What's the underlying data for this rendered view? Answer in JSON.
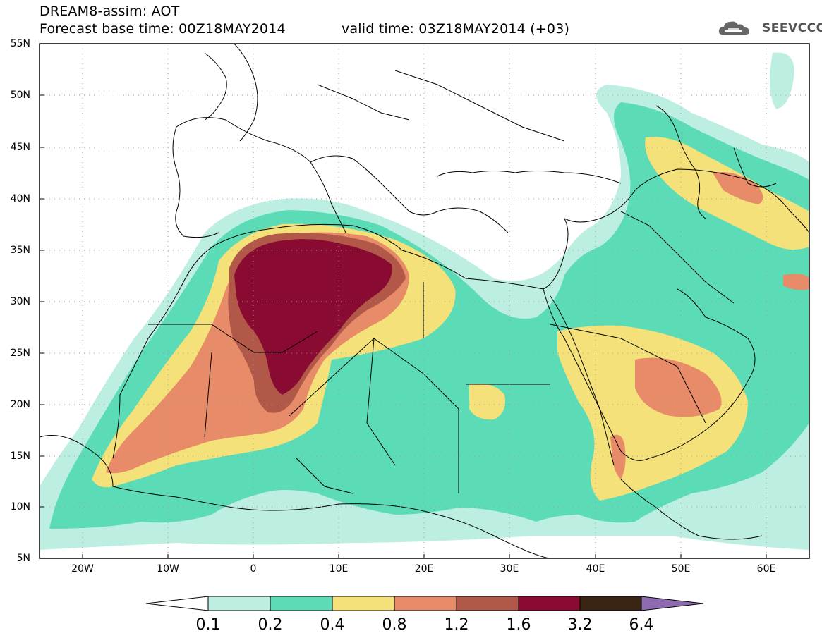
{
  "header": {
    "title_line1": "DREAM8-assim: AOT",
    "title_line2": "Forecast base time: 00Z18MAY2014",
    "valid_time": "valid time: 03Z18MAY2014 (+03)"
  },
  "logo": {
    "text": "SEEVCCC",
    "icon": "cloud-icon"
  },
  "map": {
    "lat_labels": [
      "55N",
      "50N",
      "45N",
      "40N",
      "35N",
      "30N",
      "25N",
      "20N",
      "15N",
      "10N",
      "5N"
    ],
    "lon_labels": [
      "20W",
      "10W",
      "0",
      "10E",
      "20E",
      "30E",
      "40E",
      "50E",
      "60E"
    ],
    "lat_range": [
      5,
      55
    ],
    "lon_range": [
      -25,
      65
    ]
  },
  "colorbar": {
    "labels": [
      "0.1",
      "0.2",
      "0.4",
      "0.8",
      "1.2",
      "1.6",
      "3.2",
      "6.4"
    ],
    "colors": [
      "#bdeee2",
      "#5cdcb6",
      "#f5e17a",
      "#e88b68",
      "#b15848",
      "#8a0b31",
      "#3a2414",
      "#8e6bb0"
    ]
  }
}
